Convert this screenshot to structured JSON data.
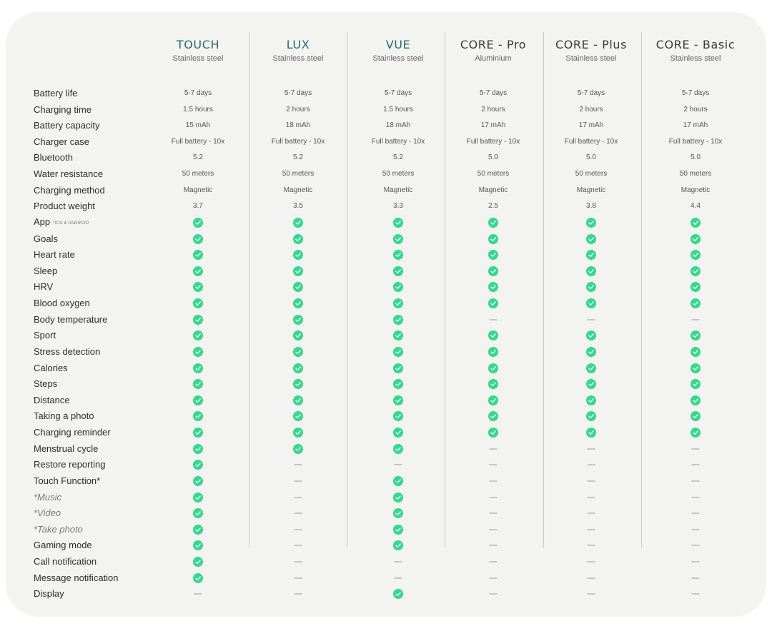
{
  "columns": [
    {
      "name": "TOUCH",
      "material": "Stainless steel",
      "accent": "teal"
    },
    {
      "name": "LUX",
      "material": "Stainless steel",
      "accent": "teal"
    },
    {
      "name": "VUE",
      "material": "Stainless steel",
      "accent": "teal"
    },
    {
      "name": "CORE - Pro",
      "material": "Aluminium",
      "accent": "dark"
    },
    {
      "name": "CORE - Plus",
      "material": "Stainless steel",
      "accent": "dark"
    },
    {
      "name": "CORE - Basic",
      "material": "Stainless steel",
      "accent": "dark"
    }
  ],
  "colors": {
    "teal_title": "#2a6b70",
    "check": "#35d98a",
    "card_background": "#f3f3f1"
  },
  "icons": {
    "yes": "check-circle-icon",
    "no": "dash-icon"
  },
  "rows": [
    {
      "label": "Battery life",
      "values": [
        "5-7 days",
        "5-7 days",
        "5-7 days",
        "5-7 days",
        "5-7 days",
        "5-7 days"
      ]
    },
    {
      "label": "Charging time",
      "values": [
        "1.5 hours",
        "2 hours",
        "1.5 hours",
        "2 hours",
        "2 hours",
        "2 hours"
      ]
    },
    {
      "label": "Battery capacity",
      "values": [
        "15 mAh",
        "18 mAh",
        "18 mAh",
        "17 mAh",
        "17 mAh",
        "17 mAh"
      ]
    },
    {
      "label": "Charger case",
      "values": [
        "Full battery - 10x",
        "Full battery - 10x",
        "Full battery - 10x",
        "Full battery - 10x",
        "Full battery - 10x",
        "Full battery - 10x"
      ]
    },
    {
      "label": "Bluetooth",
      "values": [
        "5.2",
        "5.2",
        "5.2",
        "5.0",
        "5.0",
        "5.0"
      ]
    },
    {
      "label": "Water resistance",
      "values": [
        "50 meters",
        "50 meters",
        "50 meters",
        "50 meters",
        "50 meters",
        "50 meters"
      ]
    },
    {
      "label": "Charging method",
      "values": [
        "Magnetic",
        "Magnetic",
        "Magnetic",
        "Magnetic",
        "Magnetic",
        "Magnetic"
      ]
    },
    {
      "label": "Product weight",
      "values": [
        "3.7",
        "3.5",
        "3.3",
        "2.5",
        "3.8",
        "4.4"
      ]
    },
    {
      "label": "App",
      "note": "*IOS & ANDROID",
      "values": [
        "yes",
        "yes",
        "yes",
        "yes",
        "yes",
        "yes"
      ]
    },
    {
      "label": "Goals",
      "values": [
        "yes",
        "yes",
        "yes",
        "yes",
        "yes",
        "yes"
      ]
    },
    {
      "label": "Heart rate",
      "values": [
        "yes",
        "yes",
        "yes",
        "yes",
        "yes",
        "yes"
      ]
    },
    {
      "label": "Sleep",
      "values": [
        "yes",
        "yes",
        "yes",
        "yes",
        "yes",
        "yes"
      ]
    },
    {
      "label": "HRV",
      "values": [
        "yes",
        "yes",
        "yes",
        "yes",
        "yes",
        "yes"
      ]
    },
    {
      "label": "Blood oxygen",
      "values": [
        "yes",
        "yes",
        "yes",
        "yes",
        "yes",
        "yes"
      ]
    },
    {
      "label": "Body temperature",
      "values": [
        "yes",
        "yes",
        "yes",
        "no",
        "no",
        "no"
      ]
    },
    {
      "label": "Sport",
      "values": [
        "yes",
        "yes",
        "yes",
        "yes",
        "yes",
        "yes"
      ]
    },
    {
      "label": "Stress detection",
      "values": [
        "yes",
        "yes",
        "yes",
        "yes",
        "yes",
        "yes"
      ]
    },
    {
      "label": "Calories",
      "values": [
        "yes",
        "yes",
        "yes",
        "yes",
        "yes",
        "yes"
      ]
    },
    {
      "label": "Steps",
      "values": [
        "yes",
        "yes",
        "yes",
        "yes",
        "yes",
        "yes"
      ]
    },
    {
      "label": "Distance",
      "values": [
        "yes",
        "yes",
        "yes",
        "yes",
        "yes",
        "yes"
      ]
    },
    {
      "label": "Taking a photo",
      "values": [
        "yes",
        "yes",
        "yes",
        "yes",
        "yes",
        "yes"
      ]
    },
    {
      "label": "Charging reminder",
      "values": [
        "yes",
        "yes",
        "yes",
        "yes",
        "yes",
        "yes"
      ]
    },
    {
      "label": "Menstrual cycle",
      "values": [
        "yes",
        "yes",
        "yes",
        "no",
        "no",
        "no"
      ]
    },
    {
      "label": "Restore reporting",
      "values": [
        "yes",
        "no",
        "no",
        "no",
        "no",
        "no"
      ]
    },
    {
      "label": "Touch Function*",
      "values": [
        "yes",
        "no",
        "yes",
        "no",
        "no",
        "no"
      ]
    },
    {
      "label": "*Music",
      "italic": true,
      "values": [
        "yes",
        "no",
        "yes",
        "no",
        "no",
        "no"
      ]
    },
    {
      "label": "*Video",
      "italic": true,
      "values": [
        "yes",
        "no",
        "yes",
        "no",
        "no",
        "no"
      ]
    },
    {
      "label": "*Take photo",
      "italic": true,
      "values": [
        "yes",
        "no",
        "yes",
        "no",
        "no",
        "no"
      ]
    },
    {
      "label": "Gaming mode",
      "values": [
        "yes",
        "no",
        "yes",
        "no",
        "no",
        "no"
      ]
    },
    {
      "label": "Call notification",
      "values": [
        "yes",
        "no",
        "no",
        "no",
        "no",
        "no"
      ]
    },
    {
      "label": "Message notification",
      "values": [
        "yes",
        "no",
        "no",
        "no",
        "no",
        "no"
      ]
    },
    {
      "label": "Display",
      "values": [
        "no",
        "no",
        "yes",
        "no",
        "no",
        "no"
      ]
    }
  ]
}
